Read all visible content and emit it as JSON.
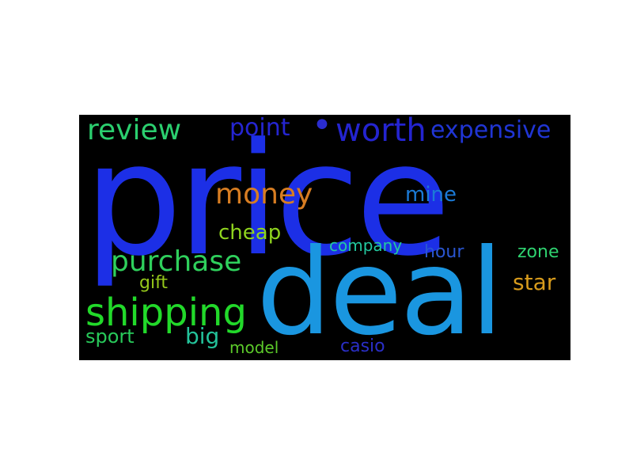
{
  "cloud": {
    "background": "#000000",
    "words": [
      {
        "id": "price",
        "text": "price",
        "color": "#1c2fe6"
      },
      {
        "id": "deal",
        "text": "deal",
        "color": "#1a96e0"
      },
      {
        "id": "shipping",
        "text": "shipping",
        "color": "#22d92a"
      },
      {
        "id": "purchase",
        "text": "purchase",
        "color": "#2fd05c"
      },
      {
        "id": "review",
        "text": "review",
        "color": "#2bcf6f"
      },
      {
        "id": "worth",
        "text": "worth",
        "color": "#2424d0"
      },
      {
        "id": "expensive",
        "text": "expensive",
        "color": "#2035d4"
      },
      {
        "id": "money",
        "text": "money",
        "color": "#d77d22"
      },
      {
        "id": "point",
        "text": "point",
        "color": "#2525d2"
      },
      {
        "id": "mine",
        "text": "mine",
        "color": "#1b7ad6"
      },
      {
        "id": "cheap",
        "text": "cheap",
        "color": "#8fd41e"
      },
      {
        "id": "company",
        "text": "company",
        "color": "#23c9a0"
      },
      {
        "id": "hour",
        "text": "hour",
        "color": "#2a56d2"
      },
      {
        "id": "zone",
        "text": "zone",
        "color": "#2fd370"
      },
      {
        "id": "star",
        "text": "star",
        "color": "#d79b1c"
      },
      {
        "id": "gift",
        "text": "gift",
        "color": "#95c81a"
      },
      {
        "id": "sport",
        "text": "sport",
        "color": "#28c95a"
      },
      {
        "id": "big",
        "text": "big",
        "color": "#23c29a"
      },
      {
        "id": "model",
        "text": "model",
        "color": "#5cca2a"
      },
      {
        "id": "casio",
        "text": "casio",
        "color": "#2a2fc8"
      },
      {
        "id": "dot",
        "text": "•",
        "color": "#2a2ccf"
      }
    ]
  }
}
